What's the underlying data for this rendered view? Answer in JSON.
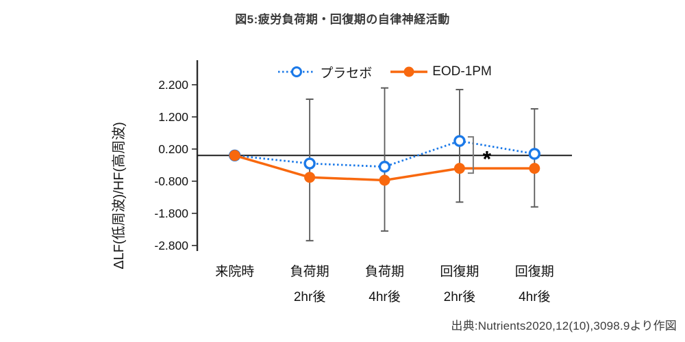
{
  "title": "図5:疲労負荷期・回復期の自律神経活動",
  "source": "出典:Nutrients2020,12(10),3098.9より作図",
  "chart_data": {
    "type": "line",
    "title": "図5:疲労負荷期・回復期の自律神経活動",
    "ylabel": "ΔLF(低周波)/HF(高周波)",
    "xlabel": "",
    "categories": [
      [
        "来院時"
      ],
      [
        "負荷期",
        "2hr後"
      ],
      [
        "負荷期",
        "4hr後"
      ],
      [
        "回復期",
        "2hr後"
      ],
      [
        "回復期",
        "4hr後"
      ]
    ],
    "y_ticks": [
      "2.200",
      "1.200",
      "0.200",
      "-0.800",
      "-1.800",
      "-2.800"
    ],
    "y_tick_values": [
      2.2,
      1.2,
      0.2,
      -0.8,
      -1.8,
      -2.8
    ],
    "ylim": [
      -2.95,
      2.95
    ],
    "grid": false,
    "legend_position": "top-center",
    "baseline_value": 0,
    "series": [
      {
        "name": "プラセボ",
        "color": "#1b79e8",
        "line_style": "dotted",
        "marker": "open-circle",
        "values": [
          0.0,
          -0.25,
          -0.35,
          0.45,
          0.05
        ]
      },
      {
        "name": "EOD-1PM",
        "color": "#f8680e",
        "line_style": "solid",
        "marker": "filled-circle",
        "values": [
          0.0,
          -0.68,
          -0.77,
          -0.4,
          -0.4
        ]
      }
    ],
    "error_bars": {
      "color": "#5a5a5a",
      "items": [
        {
          "category_index": 1,
          "high": 1.75,
          "low": -2.65
        },
        {
          "category_index": 2,
          "high": 2.1,
          "low": -2.35
        },
        {
          "category_index": 3,
          "high": 2.05,
          "low": -1.45
        },
        {
          "category_index": 4,
          "high": 1.45,
          "low": -1.6
        }
      ]
    },
    "annotation": {
      "symbol": "*",
      "category_index": 3,
      "bracket": true,
      "bracket_color": "#7a7a7a",
      "symbol_color": "#000000"
    },
    "axis_color": "#2b2b2b"
  }
}
